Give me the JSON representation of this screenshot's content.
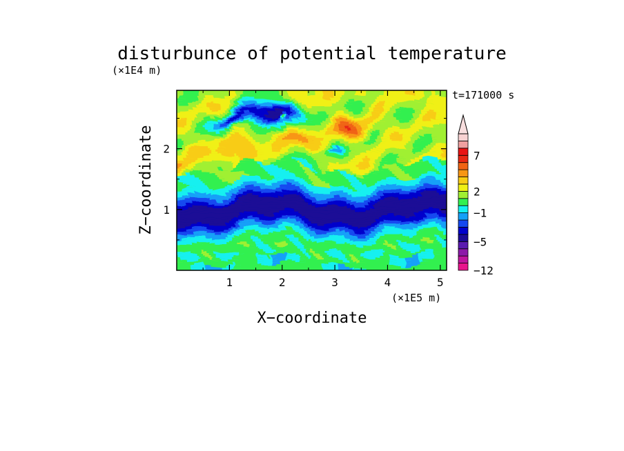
{
  "chart_data": {
    "type": "heatmap",
    "title": "disturbunce of potential temperature",
    "time_label": "t=171000 s",
    "xlabel": "X−coordinate",
    "ylabel": "Z−coordinate",
    "x_scale_label": "(×1E5 m)",
    "y_scale_label": "(×1E4 m)",
    "xlim": [
      0,
      5.12
    ],
    "ylim": [
      0,
      2.96
    ],
    "x_ticks": [
      {
        "value": 1,
        "label": "1"
      },
      {
        "value": 2,
        "label": "2"
      },
      {
        "value": 3,
        "label": "3"
      },
      {
        "value": 4,
        "label": "4"
      },
      {
        "value": 5,
        "label": "5"
      }
    ],
    "y_ticks": [
      {
        "value": 1,
        "label": "1"
      },
      {
        "value": 2,
        "label": "2"
      }
    ],
    "colorbar": {
      "extend": "max",
      "levels": [
        -12,
        -10,
        -8,
        -6,
        -5,
        -4,
        -3,
        -2,
        -1,
        0,
        1,
        2,
        3,
        4,
        5,
        6,
        7,
        8,
        9
      ],
      "colors": [
        "#e8168c",
        "#c0169e",
        "#8c1aa8",
        "#5a1ab0",
        "#1a0a96",
        "#0000cc",
        "#1448f0",
        "#14a0f8",
        "#14f0f0",
        "#32f050",
        "#a0f032",
        "#f0f014",
        "#f8cc14",
        "#f89614",
        "#f06414",
        "#e82814",
        "#e81414",
        "#f0a0a0",
        "#f8d2d2"
      ],
      "extend_color": "#f8dede",
      "tick_labels": [
        {
          "value": -12,
          "label": "−12"
        },
        {
          "value": -5,
          "label": "−5"
        },
        {
          "value": -1,
          "label": "−1"
        },
        {
          "value": 2,
          "label": "2"
        },
        {
          "value": 7,
          "label": "7"
        }
      ]
    },
    "regions": [
      {
        "z_range": [
          0,
          0.07
        ],
        "value": 0.5,
        "description": "surface layer"
      },
      {
        "z_range": [
          0.07,
          0.6
        ],
        "value": 0.5,
        "features": "bands of light green, yellow and cyan"
      },
      {
        "z_range": [
          0.6,
          0.75
        ],
        "value": -1.5
      },
      {
        "z_range": [
          0.75,
          1.25
        ],
        "value": -4.5,
        "description": "strong cold layer"
      },
      {
        "z_range": [
          1.25,
          1.4
        ],
        "value": -2.5
      },
      {
        "z_range": [
          1.4,
          1.75
        ],
        "value": 0.5
      },
      {
        "z_range": [
          1.75,
          2.95
        ],
        "value": 2.0,
        "features": "warm streaks to 5 near x≈1.2,2.3,3.3; cold cell to −6 near x≈1.8,z≈2.55"
      }
    ]
  }
}
